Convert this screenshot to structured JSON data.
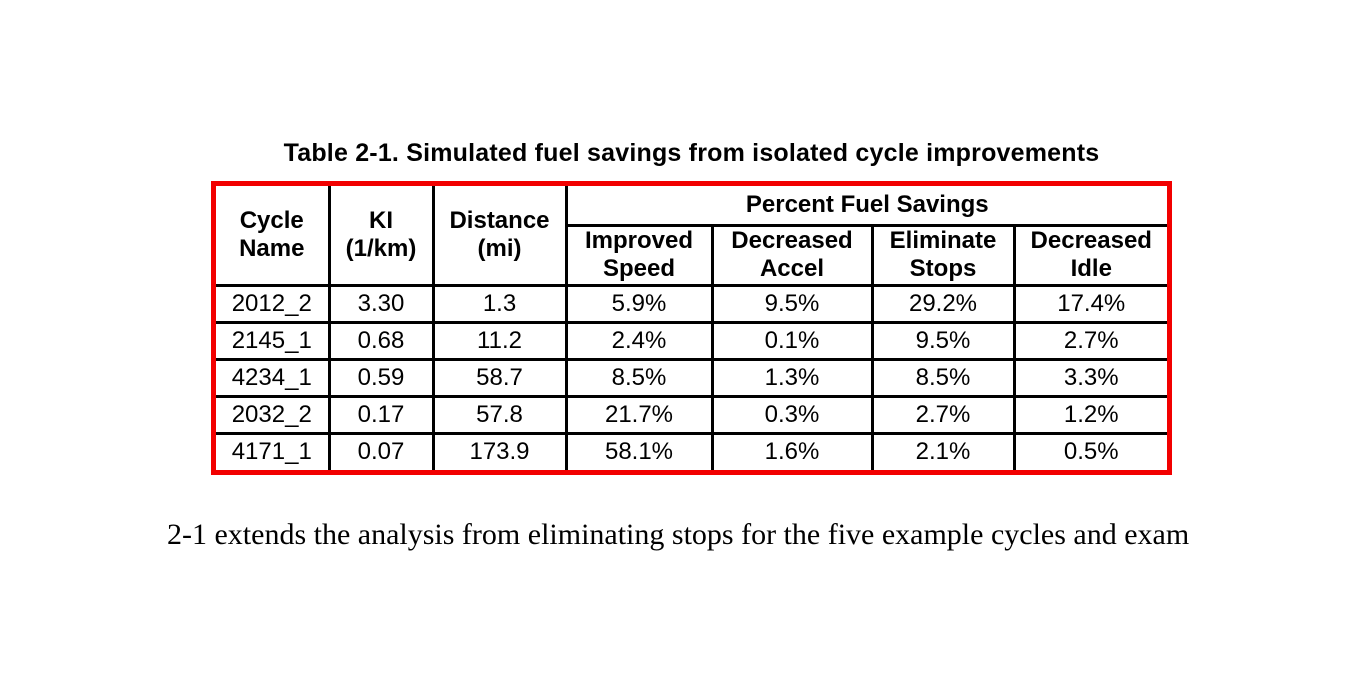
{
  "table": {
    "caption": "Table 2-1. Simulated fuel savings from isolated cycle improvements",
    "border_color": "#f20000",
    "grid_color": "#000000",
    "group_header": "Percent Fuel Savings",
    "columns": [
      {
        "id": "cycle_name",
        "label": "Cycle\nName"
      },
      {
        "id": "ki",
        "label": "KI\n(1/km)"
      },
      {
        "id": "distance",
        "label": "Distance\n(mi)"
      },
      {
        "id": "improved_speed",
        "label": "Improved\nSpeed"
      },
      {
        "id": "decreased_accel",
        "label": "Decreased\nAccel"
      },
      {
        "id": "eliminate_stops",
        "label": "Eliminate\nStops"
      },
      {
        "id": "decreased_idle",
        "label": "Decreased\nIdle"
      }
    ],
    "rows": [
      {
        "cycle_name": "2012_2",
        "ki": "3.30",
        "distance": "1.3",
        "improved_speed": "5.9%",
        "decreased_accel": "9.5%",
        "eliminate_stops": "29.2%",
        "decreased_idle": "17.4%"
      },
      {
        "cycle_name": "2145_1",
        "ki": "0.68",
        "distance": "11.2",
        "improved_speed": "2.4%",
        "decreased_accel": "0.1%",
        "eliminate_stops": "9.5%",
        "decreased_idle": "2.7%"
      },
      {
        "cycle_name": "4234_1",
        "ki": "0.59",
        "distance": "58.7",
        "improved_speed": "8.5%",
        "decreased_accel": "1.3%",
        "eliminate_stops": "8.5%",
        "decreased_idle": "3.3%"
      },
      {
        "cycle_name": "2032_2",
        "ki": "0.17",
        "distance": "57.8",
        "improved_speed": "21.7%",
        "decreased_accel": "0.3%",
        "eliminate_stops": "2.7%",
        "decreased_idle": "1.2%"
      },
      {
        "cycle_name": "4171_1",
        "ki": "0.07",
        "distance": "173.9",
        "improved_speed": "58.1%",
        "decreased_accel": "1.6%",
        "eliminate_stops": "2.1%",
        "decreased_idle": "0.5%"
      }
    ]
  },
  "body_text": "2-1 extends the analysis from eliminating stops for the five example cycles and exam"
}
